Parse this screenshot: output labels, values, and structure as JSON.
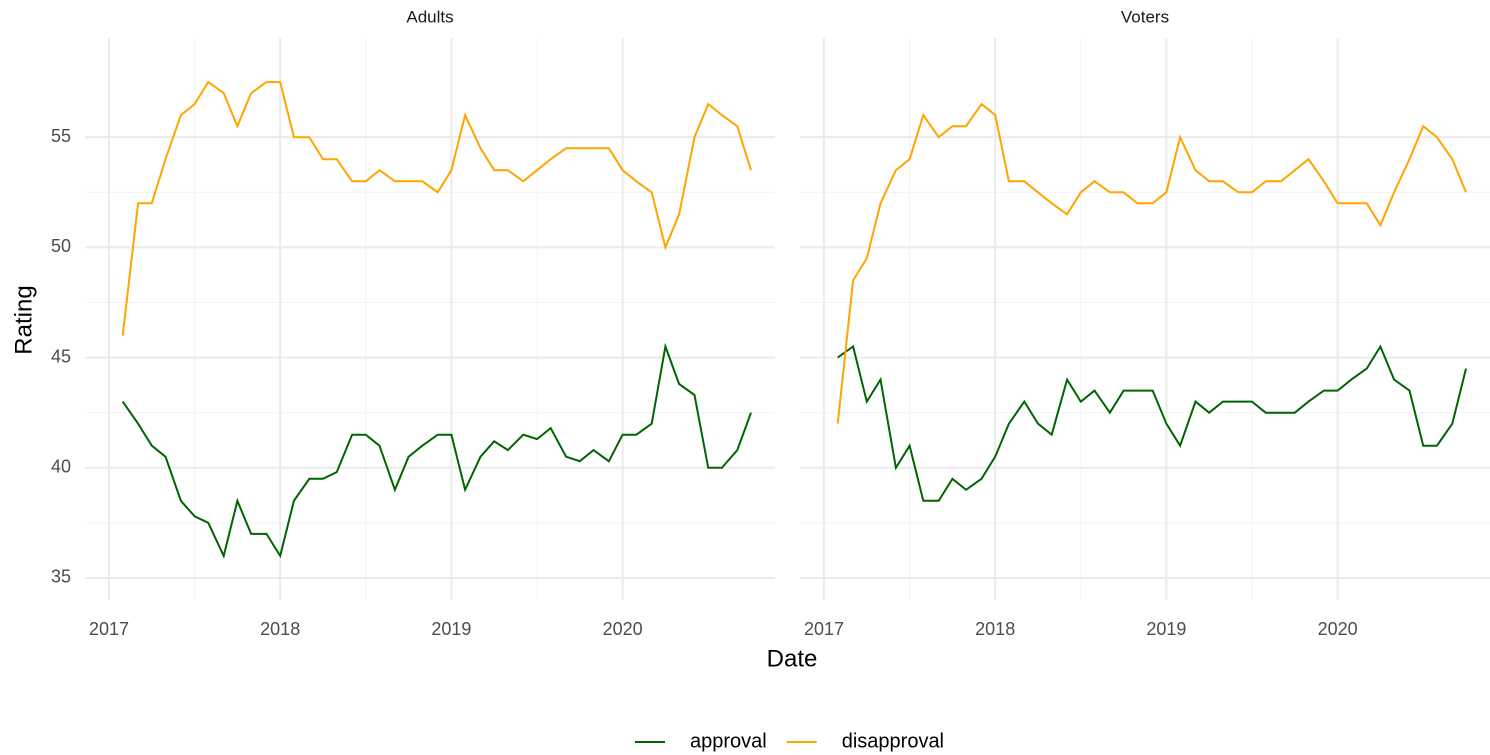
{
  "chart_data": {
    "type": "line",
    "x_label": "Date",
    "y_label": "Rating",
    "legend": "bottom",
    "grid": true,
    "xlim": [
      2016.86,
      2020.89
    ],
    "xticks": [
      2017,
      2018,
      2019,
      2020
    ],
    "ylim": [
      34,
      59.5
    ],
    "yticks": [
      35,
      40,
      45,
      50,
      55
    ],
    "series": [
      {
        "name": "approval",
        "color": "#006400"
      },
      {
        "name": "disapproval",
        "color": "#FFA500"
      }
    ],
    "panels": [
      {
        "title": "Adults",
        "x": [
          2017.08,
          2017.17,
          2017.25,
          2017.33,
          2017.42,
          2017.5,
          2017.58,
          2017.67,
          2017.75,
          2017.83,
          2017.92,
          2018.0,
          2018.08,
          2018.17,
          2018.25,
          2018.33,
          2018.42,
          2018.5,
          2018.58,
          2018.67,
          2018.75,
          2018.83,
          2018.92,
          2019.0,
          2019.08,
          2019.17,
          2019.25,
          2019.33,
          2019.42,
          2019.5,
          2019.58,
          2019.67,
          2019.75,
          2019.83,
          2019.92,
          2020.0,
          2020.08,
          2020.17,
          2020.25,
          2020.33,
          2020.42,
          2020.5,
          2020.58,
          2020.67,
          2020.75
        ],
        "series": [
          {
            "values": [
              43,
              42,
              41,
              40.5,
              38.5,
              37.8,
              37.5,
              36,
              38.5,
              37,
              37,
              36,
              38.5,
              39.5,
              39.5,
              39.8,
              41.5,
              41.5,
              41,
              39,
              40.5,
              41,
              41.5,
              41.5,
              39,
              40.5,
              41.2,
              40.8,
              41.5,
              41.3,
              41.8,
              40.5,
              40.3,
              40.8,
              40.3,
              41.5,
              41.5,
              42,
              45.5,
              43.8,
              43.3,
              40,
              40,
              40.8,
              42.5
            ]
          },
          {
            "values": [
              46,
              52,
              52,
              54,
              56,
              56.5,
              57.5,
              57,
              55.5,
              57,
              57.5,
              57.5,
              55,
              55,
              54,
              54,
              53,
              53,
              53.5,
              53,
              53,
              53,
              52.5,
              53.5,
              56,
              54.5,
              53.5,
              53.5,
              53,
              53.5,
              54,
              54.5,
              54.5,
              54.5,
              54.5,
              53.5,
              53,
              52.5,
              50,
              51.5,
              55,
              56.5,
              56,
              55.5,
              53.5
            ]
          }
        ]
      },
      {
        "title": "Voters",
        "x": [
          2017.08,
          2017.17,
          2017.25,
          2017.33,
          2017.42,
          2017.5,
          2017.58,
          2017.67,
          2017.75,
          2017.83,
          2017.92,
          2018.0,
          2018.08,
          2018.17,
          2018.25,
          2018.33,
          2018.42,
          2018.5,
          2018.58,
          2018.67,
          2018.75,
          2018.83,
          2018.92,
          2019.0,
          2019.08,
          2019.17,
          2019.25,
          2019.33,
          2019.42,
          2019.5,
          2019.58,
          2019.67,
          2019.75,
          2019.83,
          2019.92,
          2020.0,
          2020.08,
          2020.17,
          2020.25,
          2020.33,
          2020.42,
          2020.5,
          2020.58,
          2020.67,
          2020.75
        ],
        "series": [
          {
            "values": [
              45,
              45.5,
              43,
              44,
              40,
              41,
              38.5,
              38.5,
              39.5,
              39,
              39.5,
              40.5,
              42,
              43,
              42,
              41.5,
              44,
              43,
              43.5,
              42.5,
              43.5,
              43.5,
              43.5,
              42,
              41,
              43,
              42.5,
              43,
              43,
              43,
              42.5,
              42.5,
              42.5,
              43,
              43.5,
              43.5,
              44,
              44.5,
              45.5,
              44,
              43.5,
              41,
              41,
              42,
              44.5
            ]
          },
          {
            "values": [
              42,
              48.5,
              49.5,
              52,
              53.5,
              54,
              56,
              55,
              55.5,
              55.5,
              56.5,
              56,
              53,
              53,
              52.5,
              52,
              51.5,
              52.5,
              53,
              52.5,
              52.5,
              52,
              52,
              52.5,
              55,
              53.5,
              53,
              53,
              52.5,
              52.5,
              53,
              53,
              53.5,
              54,
              53,
              52,
              52,
              52,
              51,
              52.5,
              54,
              55.5,
              55,
              54,
              52.5
            ]
          }
        ]
      }
    ]
  }
}
